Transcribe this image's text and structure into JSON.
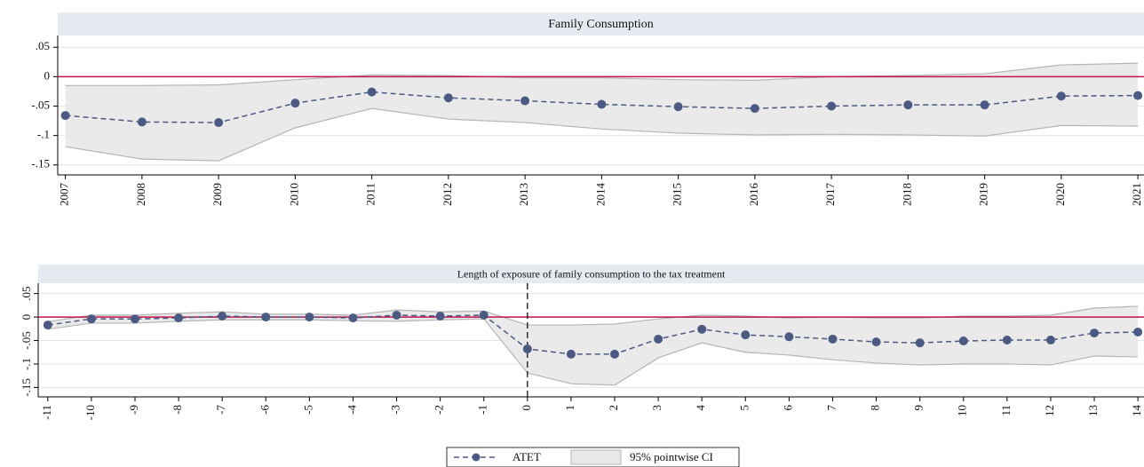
{
  "chart_data": [
    {
      "type": "line",
      "title": "Family Consumption",
      "x": [
        2007,
        2008,
        2009,
        2010,
        2011,
        2012,
        2013,
        2014,
        2015,
        2016,
        2017,
        2018,
        2019,
        2020,
        2021
      ],
      "values": [
        -0.066,
        -0.077,
        -0.078,
        -0.045,
        -0.026,
        -0.036,
        -0.041,
        -0.047,
        -0.051,
        -0.054,
        -0.05,
        -0.048,
        -0.048,
        -0.033,
        -0.032
      ],
      "ci_upper": [
        -0.015,
        -0.015,
        -0.014,
        -0.005,
        0.003,
        0.002,
        -0.002,
        -0.002,
        -0.005,
        -0.006,
        0,
        0.002,
        0.005,
        0.02,
        0.023
      ],
      "ci_lower": [
        -0.119,
        -0.14,
        -0.143,
        -0.087,
        -0.054,
        -0.072,
        -0.078,
        -0.089,
        -0.096,
        -0.099,
        -0.098,
        -0.099,
        -0.101,
        -0.083,
        -0.084
      ],
      "series_name": "ATET",
      "ci_name": "95% pointwise CI",
      "color": "#4a5a82",
      "ci_color": "#e8e8e8",
      "ref_color": "#c0134a",
      "xlim": [
        2006.9,
        2021.08
      ],
      "xticks": [
        2007,
        2008,
        2009,
        2010,
        2011,
        2012,
        2013,
        2014,
        2015,
        2016,
        2017,
        2018,
        2019,
        2020,
        2021
      ],
      "ylim": [
        -0.167,
        0.07
      ],
      "yticks": [
        {
          "value": -0.15,
          "label": "-.15"
        },
        {
          "value": -0.1,
          "label": "-.1"
        },
        {
          "value": -0.05,
          "label": "-.05"
        },
        0,
        {
          "value": 0.05,
          "label": ".05"
        }
      ],
      "yline": 0,
      "grid": true,
      "legend": "bottom"
    },
    {
      "type": "line",
      "title": "Length of exposure of family consumption to the tax treatment",
      "x": [
        -11,
        -10,
        -9,
        -8,
        -7,
        -6,
        -5,
        -4,
        -3,
        -2,
        -1,
        0,
        1,
        2,
        3,
        4,
        5,
        6,
        7,
        8,
        9,
        10,
        11,
        12,
        13,
        14
      ],
      "values": [
        -0.017,
        -0.004,
        -0.004,
        -0.002,
        0.002,
        0,
        0,
        -0.002,
        0.004,
        0.002,
        0.004,
        -0.068,
        -0.079,
        -0.079,
        -0.047,
        -0.026,
        -0.038,
        -0.042,
        -0.047,
        -0.053,
        -0.055,
        -0.051,
        -0.049,
        -0.049,
        -0.034,
        -0.032
      ],
      "ci_upper": [
        -0.01,
        0.004,
        0.004,
        0.008,
        0.011,
        0.006,
        0.006,
        0.004,
        0.015,
        0.011,
        0.013,
        -0.017,
        -0.017,
        -0.015,
        -0.004,
        0.004,
        0.002,
        -0.002,
        0,
        -0.002,
        -0.002,
        0.002,
        0.002,
        0.004,
        0.019,
        0.023
      ],
      "ci_lower": [
        -0.026,
        -0.013,
        -0.013,
        -0.009,
        -0.006,
        -0.006,
        -0.006,
        -0.008,
        -0.009,
        -0.006,
        -0.004,
        -0.119,
        -0.142,
        -0.145,
        -0.087,
        -0.055,
        -0.075,
        -0.081,
        -0.091,
        -0.098,
        -0.102,
        -0.1,
        -0.1,
        -0.102,
        -0.083,
        -0.085
      ],
      "color": "#4a5a82",
      "ci_color": "#e8e8e8",
      "ref_color": "#c0134a",
      "xlim": [
        -11.22,
        14.14
      ],
      "xticks": [
        -11,
        -10,
        -9,
        -8,
        -7,
        -6,
        -5,
        -4,
        -3,
        -2,
        -1,
        0,
        1,
        2,
        3,
        4,
        5,
        6,
        7,
        8,
        9,
        10,
        11,
        12,
        13,
        14
      ],
      "ylim": [
        -0.17,
        0.072
      ],
      "yticks": [
        {
          "value": -0.15,
          "label": "-.15"
        },
        {
          "value": -0.1,
          "label": "-.1"
        },
        {
          "value": -0.05,
          "label": "-.05"
        },
        0,
        {
          "value": 0.05,
          "label": ".05"
        }
      ],
      "yline": 0,
      "xline": 0,
      "grid": true
    }
  ]
}
